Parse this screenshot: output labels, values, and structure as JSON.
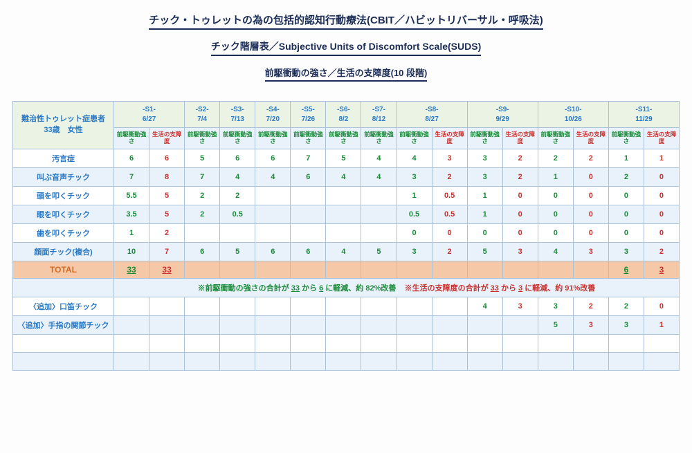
{
  "title1": "チック・トゥレットの為の包括的認知行動療法(CBIT／ハビットリバーサル・呼吸法)",
  "title2": "チック階層表／Subjective Units of Discomfort Scale(SUDS)",
  "title3": "前駆衝動の強さ／生活の支障度(10 段階)",
  "patient_l1": "難治性トゥレット症患者",
  "patient_l2": "33歳　女性",
  "sessions": {
    "s1": "-S1-\n6/27",
    "s2": "-S2-\n7/4",
    "s3": "-S3-\n7/13",
    "s4": "-S4-\n7/20",
    "s5": "-S5-\n7/26",
    "s6": "-S6-\n8/2",
    "s7": "-S7-\n8/12",
    "s8": "-S8-\n8/27",
    "s9": "-S9-\n9/29",
    "s10": "-S10-\n10/26",
    "s11": "-S11-\n11/29"
  },
  "sub_pre": "前駆衝動強さ",
  "sub_life": "生活の支障度",
  "rows": {
    "r0": "汚言症",
    "r1": "叫ぶ音声チック",
    "r2": "頭を叩くチック",
    "r3": "眼を叩くチック",
    "r4": "歯を叩くチック",
    "r5": "顔面チック(複合)",
    "total": "TOTAL",
    "a0": "〈追加〉口笛チック",
    "a1": "〈追加〉手指の関節チック"
  },
  "v": {
    "r0": {
      "c0": "6",
      "c1": "6",
      "c2": "5",
      "c3": "6",
      "c4": "6",
      "c5": "7",
      "c6": "5",
      "c7": "4",
      "c8": "4",
      "c9": "3",
      "c10": "3",
      "c11": "2",
      "c12": "2",
      "c13": "2",
      "c14": "1",
      "c15": "1"
    },
    "r1": {
      "c0": "7",
      "c1": "8",
      "c2": "7",
      "c3": "4",
      "c4": "4",
      "c5": "6",
      "c6": "4",
      "c7": "4",
      "c8": "3",
      "c9": "2",
      "c10": "3",
      "c11": "2",
      "c12": "1",
      "c13": "0",
      "c14": "2",
      "c15": "0"
    },
    "r2": {
      "c0": "5.5",
      "c1": "5",
      "c2": "2",
      "c3": "2",
      "c4": "",
      "c5": "",
      "c6": "",
      "c7": "",
      "c8": "1",
      "c9": "0.5",
      "c10": "1",
      "c11": "0",
      "c12": "0",
      "c13": "0",
      "c14": "0",
      "c15": "0"
    },
    "r3": {
      "c0": "3.5",
      "c1": "5",
      "c2": "2",
      "c3": "0.5",
      "c4": "",
      "c5": "",
      "c6": "",
      "c7": "",
      "c8": "0.5",
      "c9": "0.5",
      "c10": "1",
      "c11": "0",
      "c12": "0",
      "c13": "0",
      "c14": "0",
      "c15": "0"
    },
    "r4": {
      "c0": "1",
      "c1": "2",
      "c2": "",
      "c3": "",
      "c4": "",
      "c5": "",
      "c6": "",
      "c7": "",
      "c8": "0",
      "c9": "0",
      "c10": "0",
      "c11": "0",
      "c12": "0",
      "c13": "0",
      "c14": "0",
      "c15": "0"
    },
    "r5": {
      "c0": "10",
      "c1": "7",
      "c2": "6",
      "c3": "5",
      "c4": "6",
      "c5": "6",
      "c6": "4",
      "c7": "5",
      "c8": "3",
      "c9": "2",
      "c10": "5",
      "c11": "3",
      "c12": "4",
      "c13": "3",
      "c14": "3",
      "c15": "2"
    },
    "a0": {
      "c10": "4",
      "c11": "3",
      "c12": "3",
      "c13": "2",
      "c14": "2",
      "c15": "0"
    },
    "a1": {
      "c12": "5",
      "c13": "3",
      "c14": "3",
      "c15": "1"
    }
  },
  "totals": {
    "t0": "33",
    "t1": "33",
    "t14": "6",
    "t15": "3"
  },
  "summary": {
    "pre_prefix": "※前駆衝動の強さの合計が",
    "pre_from": "33",
    "pre_mid1": "から",
    "pre_to": "6",
    "pre_suffix": "に軽減、約 82%改善",
    "life_prefix": "※生活の支障度の合計が",
    "life_from": "33",
    "life_mid1": "から",
    "life_to": "3",
    "life_suffix": "に軽減、約 91%改善"
  }
}
